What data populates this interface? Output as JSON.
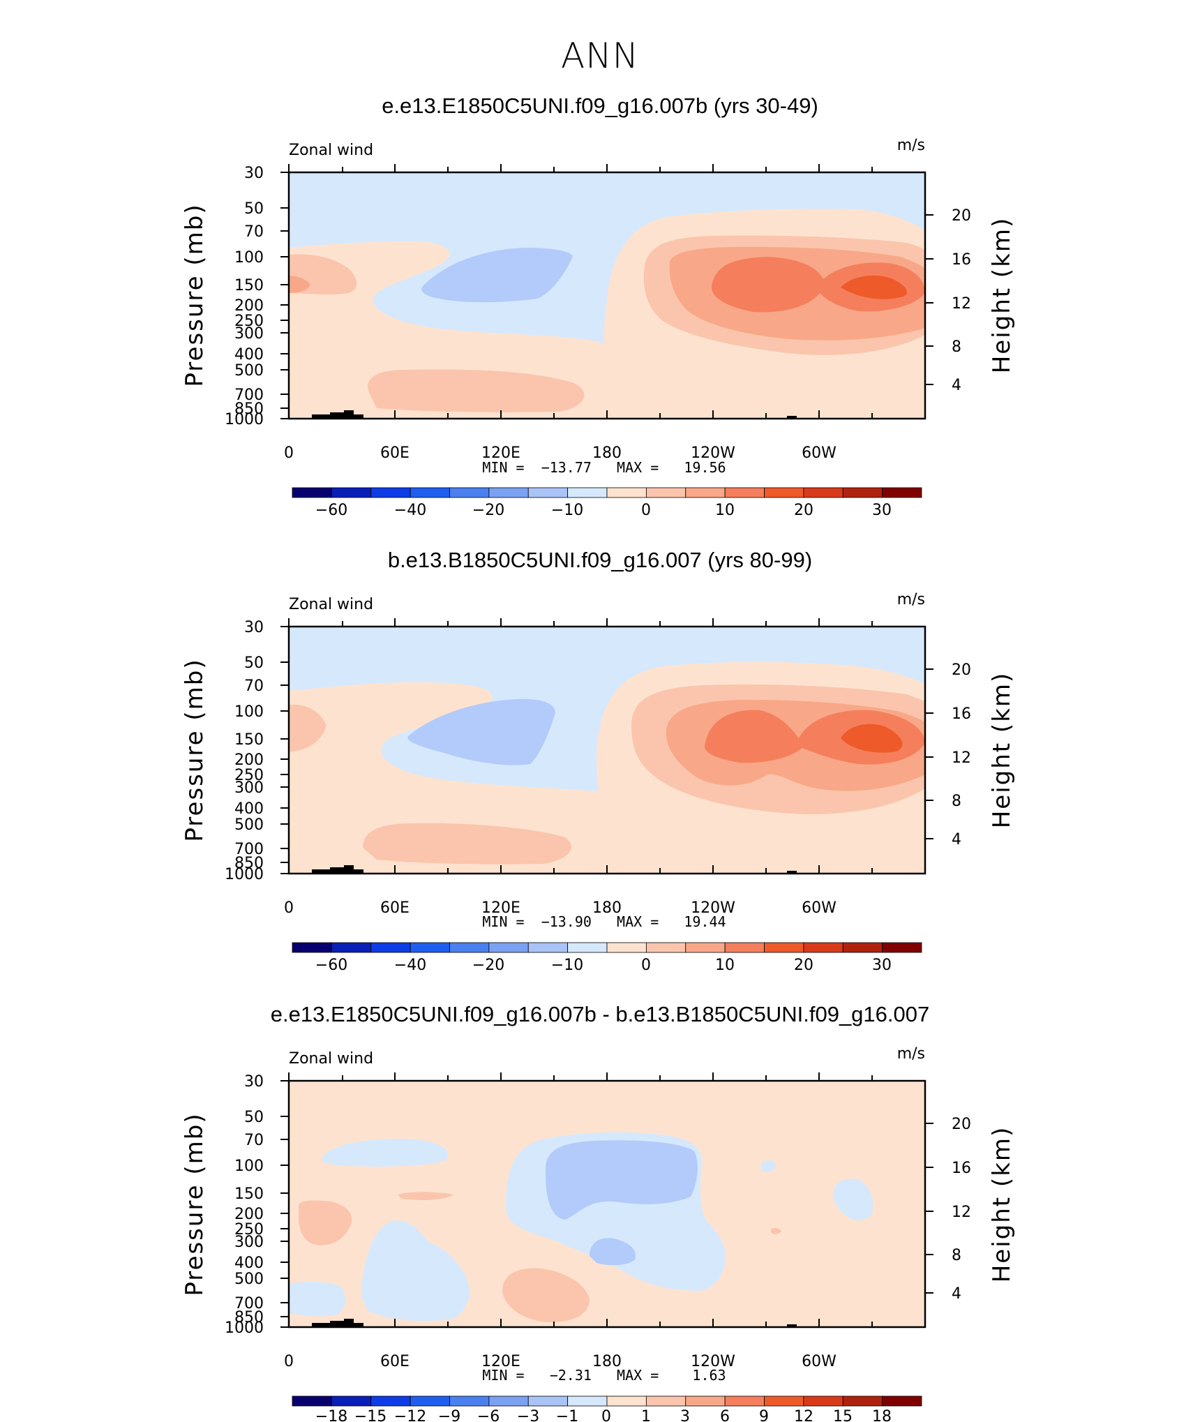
{
  "figure": {
    "title": "ANN",
    "colors": {
      "light_blue_bg": "#d6e8fc",
      "mid_blue": "#b3cbfa",
      "light_orange": "#fde3cf",
      "orange1": "#fbc5ad",
      "orange2": "#f8a888",
      "orange3": "#f57f5c",
      "orange4": "#ee5a2a",
      "topo": "#000000"
    }
  },
  "panels": [
    {
      "subtitle": "e.e13.E1850C5UNI.f09_g16.007b (yrs 30-49)",
      "left_label": "Zonal wind",
      "right_label": "m/s",
      "ylabel": "Pressure (mb)",
      "ylabel_right": "Height (km)",
      "stats_text": "MIN =  −13.77   MAX =   19.56",
      "colorbar_labels": [
        "−60",
        "−40",
        "−20",
        "−10",
        "0",
        "10",
        "20",
        "30"
      ]
    },
    {
      "subtitle": "b.e13.B1850C5UNI.f09_g16.007 (yrs 80-99)",
      "left_label": "Zonal wind",
      "right_label": "m/s",
      "ylabel": "Pressure (mb)",
      "ylabel_right": "Height (km)",
      "stats_text": "MIN =  −13.90   MAX =   19.44",
      "colorbar_labels": [
        "−60",
        "−40",
        "−20",
        "−10",
        "0",
        "10",
        "20",
        "30"
      ]
    },
    {
      "subtitle": "e.e13.E1850C5UNI.f09_g16.007b - b.e13.B1850C5UNI.f09_g16.007",
      "left_label": "Zonal wind",
      "right_label": "m/s",
      "ylabel": "Pressure (mb)",
      "ylabel_right": "Height (km)",
      "stats_text": "MIN =   −2.31   MAX =    1.63",
      "colorbar_labels": [
        "−18",
        "−15",
        "−12",
        "−9",
        "−6",
        "−3",
        "−1",
        "0",
        "1",
        "3",
        "6",
        "9",
        "12",
        "15",
        "18"
      ]
    }
  ],
  "chart_data": [
    {
      "type": "heatmap",
      "title": "e.e13.E1850C5UNI.f09_g16.007b (yrs 30-49)",
      "variable": "Zonal wind",
      "units": "m/s",
      "xlabel": "",
      "ylabel": "Pressure (mb)",
      "ylabel_right": "Height (km)",
      "x_ticks": [
        "0",
        "60E",
        "120E",
        "180",
        "120W",
        "60W"
      ],
      "y_ticks": [
        "30",
        "50",
        "70",
        "100",
        "150",
        "200",
        "250",
        "300",
        "400",
        "500",
        "700",
        "850",
        "1000"
      ],
      "y_right_ticks": [
        "20",
        "16",
        "12",
        "8",
        "4"
      ],
      "min": -13.77,
      "max": 19.56,
      "contour_levels": [
        -60,
        -40,
        -20,
        -10,
        0,
        10,
        20,
        30
      ]
    },
    {
      "type": "heatmap",
      "title": "b.e13.B1850C5UNI.f09_g16.007 (yrs 80-99)",
      "variable": "Zonal wind",
      "units": "m/s",
      "xlabel": "",
      "ylabel": "Pressure (mb)",
      "ylabel_right": "Height (km)",
      "x_ticks": [
        "0",
        "60E",
        "120E",
        "180",
        "120W",
        "60W"
      ],
      "y_ticks": [
        "30",
        "50",
        "70",
        "100",
        "150",
        "200",
        "250",
        "300",
        "400",
        "500",
        "700",
        "850",
        "1000"
      ],
      "y_right_ticks": [
        "20",
        "16",
        "12",
        "8",
        "4"
      ],
      "min": -13.9,
      "max": 19.44,
      "contour_levels": [
        -60,
        -40,
        -20,
        -10,
        0,
        10,
        20,
        30
      ]
    },
    {
      "type": "heatmap",
      "title": "e.e13.E1850C5UNI.f09_g16.007b - b.e13.B1850C5UNI.f09_g16.007",
      "variable": "Zonal wind",
      "units": "m/s",
      "xlabel": "",
      "ylabel": "Pressure (mb)",
      "ylabel_right": "Height (km)",
      "x_ticks": [
        "0",
        "60E",
        "120E",
        "180",
        "120W",
        "60W"
      ],
      "y_ticks": [
        "30",
        "50",
        "70",
        "100",
        "150",
        "200",
        "250",
        "300",
        "400",
        "500",
        "700",
        "850",
        "1000"
      ],
      "y_right_ticks": [
        "20",
        "16",
        "12",
        "8",
        "4"
      ],
      "min": -2.31,
      "max": 1.63,
      "contour_levels": [
        -18,
        -15,
        -12,
        -9,
        -6,
        -3,
        -1,
        0,
        1,
        3,
        6,
        9,
        12,
        15,
        18
      ]
    }
  ]
}
